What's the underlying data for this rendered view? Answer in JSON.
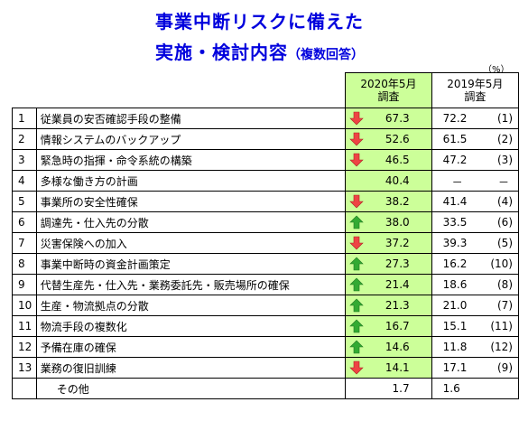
{
  "title_line1": "事業中断リスクに備えた",
  "title_line2": "実施・検討内容",
  "title_sub": "（複数回答）",
  "unit": "（%）",
  "headers": {
    "col2020_line1": "2020年5月",
    "col2020_line2": "調査",
    "col2019_line1": "2019年5月",
    "col2019_line2": "調査"
  },
  "colors": {
    "title": "#0000dd",
    "highlight": "#ccff99",
    "up": "#33aa33",
    "down": "#ee4444"
  },
  "rows": [
    {
      "num": "1",
      "item": "従業員の安否確認手段の整備",
      "arrow": "down",
      "v2020": "67.3",
      "v2019": "72.2",
      "rank": "(1)"
    },
    {
      "num": "2",
      "item": "情報システムのバックアップ",
      "arrow": "down",
      "v2020": "52.6",
      "v2019": "61.5",
      "rank": "(2)"
    },
    {
      "num": "3",
      "item": "緊急時の指揮・命令系統の構築",
      "arrow": "down",
      "v2020": "46.5",
      "v2019": "47.2",
      "rank": "(3)"
    },
    {
      "num": "4",
      "item": "多様な働き方の計画",
      "arrow": "none",
      "v2020": "40.4",
      "v2019": "－",
      "rank": "－"
    },
    {
      "num": "5",
      "item": "事業所の安全性確保",
      "arrow": "down",
      "v2020": "38.2",
      "v2019": "41.4",
      "rank": "(4)"
    },
    {
      "num": "6",
      "item": "調達先・仕入先の分散",
      "arrow": "up",
      "v2020": "38.0",
      "v2019": "33.5",
      "rank": "(6)"
    },
    {
      "num": "7",
      "item": "災害保険への加入",
      "arrow": "down",
      "v2020": "37.2",
      "v2019": "39.3",
      "rank": "(5)"
    },
    {
      "num": "8",
      "item": "事業中断時の資金計画策定",
      "arrow": "up",
      "v2020": "27.3",
      "v2019": "16.2",
      "rank": "(10)"
    },
    {
      "num": "9",
      "item": "代替生産先・仕入先・業務委託先・販売場所の確保",
      "arrow": "up",
      "v2020": "21.4",
      "v2019": "18.6",
      "rank": "(8)"
    },
    {
      "num": "10",
      "item": "生産・物流拠点の分散",
      "arrow": "up",
      "v2020": "21.3",
      "v2019": "21.0",
      "rank": "(7)"
    },
    {
      "num": "11",
      "item": "物流手段の複数化",
      "arrow": "up",
      "v2020": "16.7",
      "v2019": "15.1",
      "rank": "(11)"
    },
    {
      "num": "12",
      "item": "予備在庫の確保",
      "arrow": "up",
      "v2020": "14.6",
      "v2019": "11.8",
      "rank": "(12)"
    },
    {
      "num": "13",
      "item": "業務の復旧訓練",
      "arrow": "down",
      "v2020": "14.1",
      "v2019": "17.1",
      "rank": "(9)"
    }
  ],
  "other": {
    "item": "その他",
    "v2020": "1.7",
    "v2019": "1.6"
  }
}
